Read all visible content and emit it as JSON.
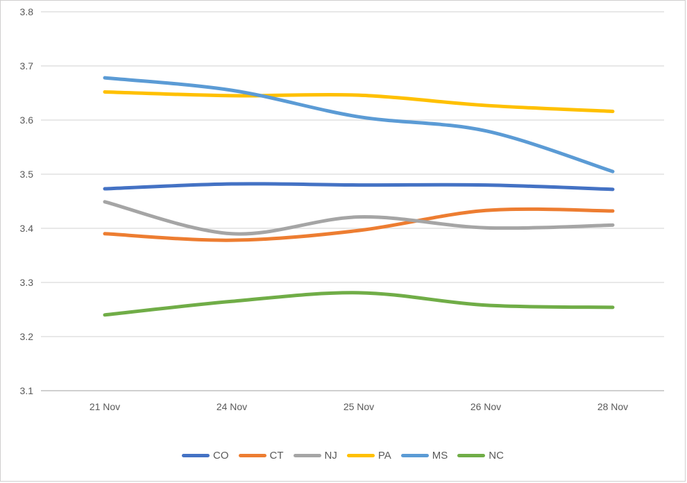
{
  "chart_data": {
    "type": "line",
    "title": "",
    "xlabel": "",
    "ylabel": "",
    "categories": [
      "21 Nov",
      "24 Nov",
      "25 Nov",
      "26 Nov",
      "28 Nov"
    ],
    "series": [
      {
        "name": "CO",
        "color": "#4472C4",
        "values": [
          3.473,
          3.482,
          3.48,
          3.48,
          3.472
        ]
      },
      {
        "name": "CT",
        "color": "#ED7D31",
        "values": [
          3.39,
          3.378,
          3.396,
          3.433,
          3.432
        ]
      },
      {
        "name": "NJ",
        "color": "#A5A5A5",
        "values": [
          3.449,
          3.39,
          3.421,
          3.401,
          3.406
        ]
      },
      {
        "name": "PA",
        "color": "#FFC000",
        "values": [
          3.652,
          3.645,
          3.646,
          3.627,
          3.616
        ]
      },
      {
        "name": "MS",
        "color": "#5B9BD5",
        "values": [
          3.678,
          3.655,
          3.606,
          3.58,
          3.505
        ]
      },
      {
        "name": "NC",
        "color": "#70AD47",
        "values": [
          3.24,
          3.265,
          3.281,
          3.258,
          3.254
        ]
      }
    ],
    "ylim": [
      3.1,
      3.8
    ],
    "ytick_step": 0.1,
    "y_ticks": [
      "3.1",
      "3.2",
      "3.3",
      "3.4",
      "3.5",
      "3.6",
      "3.7",
      "3.8"
    ],
    "grid": true,
    "smooth": true,
    "legend_position": "bottom",
    "grid_color": "#D9D9D9",
    "axis_line_color": "#BFBFBF",
    "tick_label_color": "#595959"
  }
}
